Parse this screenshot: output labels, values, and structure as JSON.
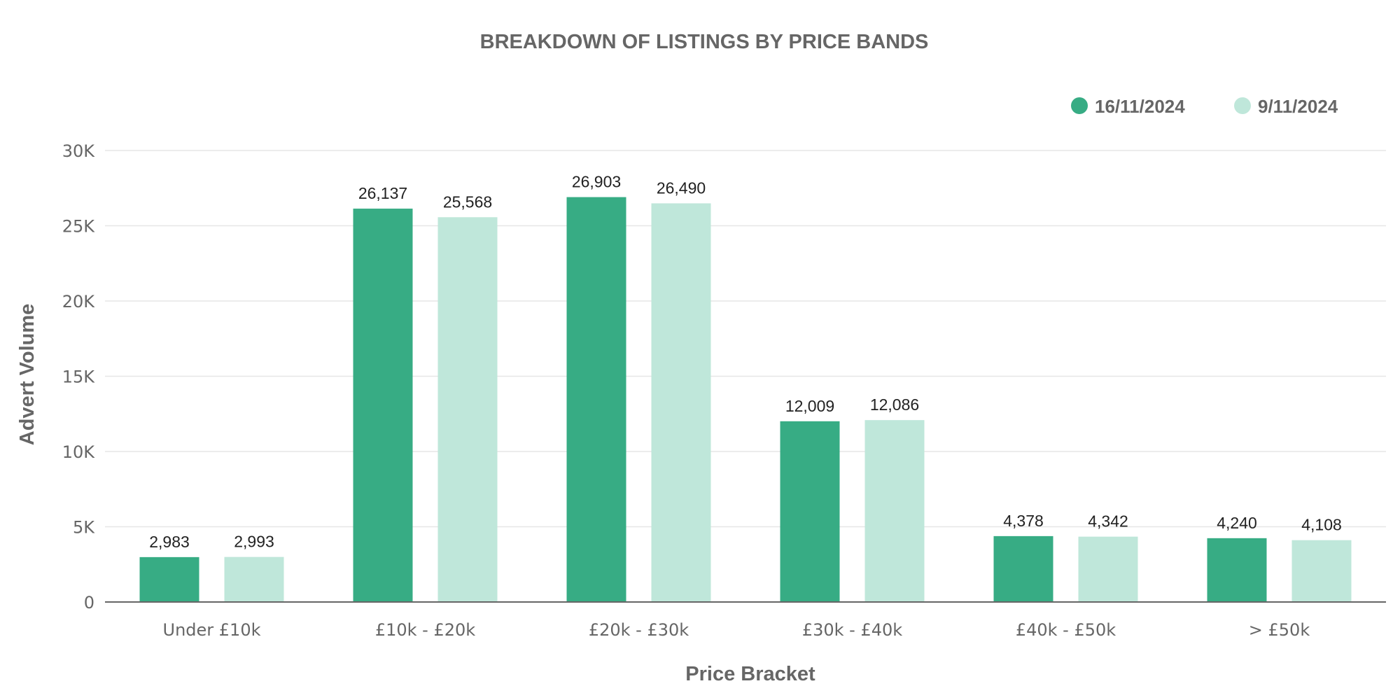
{
  "chart_data": {
    "type": "bar",
    "title": "BREAKDOWN OF LISTINGS BY PRICE BANDS",
    "xlabel": "Price Bracket",
    "ylabel": "Advert Volume",
    "categories": [
      "Under £10k",
      "£10k - £20k",
      "£20k - £30k",
      "£30k - £40k",
      "£40k - £50k",
      "> £50k"
    ],
    "series": [
      {
        "name": "16/11/2024",
        "color": "#37ac84",
        "values": [
          2983,
          26137,
          26903,
          12009,
          4378,
          4240
        ],
        "labels": [
          "2,983",
          "26,137",
          "26,903",
          "12,009",
          "4,378",
          "4,240"
        ]
      },
      {
        "name": "9/11/2024",
        "color": "#bfe7da",
        "values": [
          2993,
          25568,
          26490,
          12086,
          4342,
          4108
        ],
        "labels": [
          "2,993",
          "25,568",
          "26,490",
          "12,086",
          "4,342",
          "4,108"
        ]
      }
    ],
    "ylim": [
      0,
      30000
    ],
    "yticks": [
      0,
      5000,
      10000,
      15000,
      20000,
      25000,
      30000
    ],
    "ytick_labels": [
      "0",
      "5K",
      "10K",
      "15K",
      "20K",
      "25K",
      "30K"
    ],
    "grid": true,
    "legend_position": "top-right"
  }
}
